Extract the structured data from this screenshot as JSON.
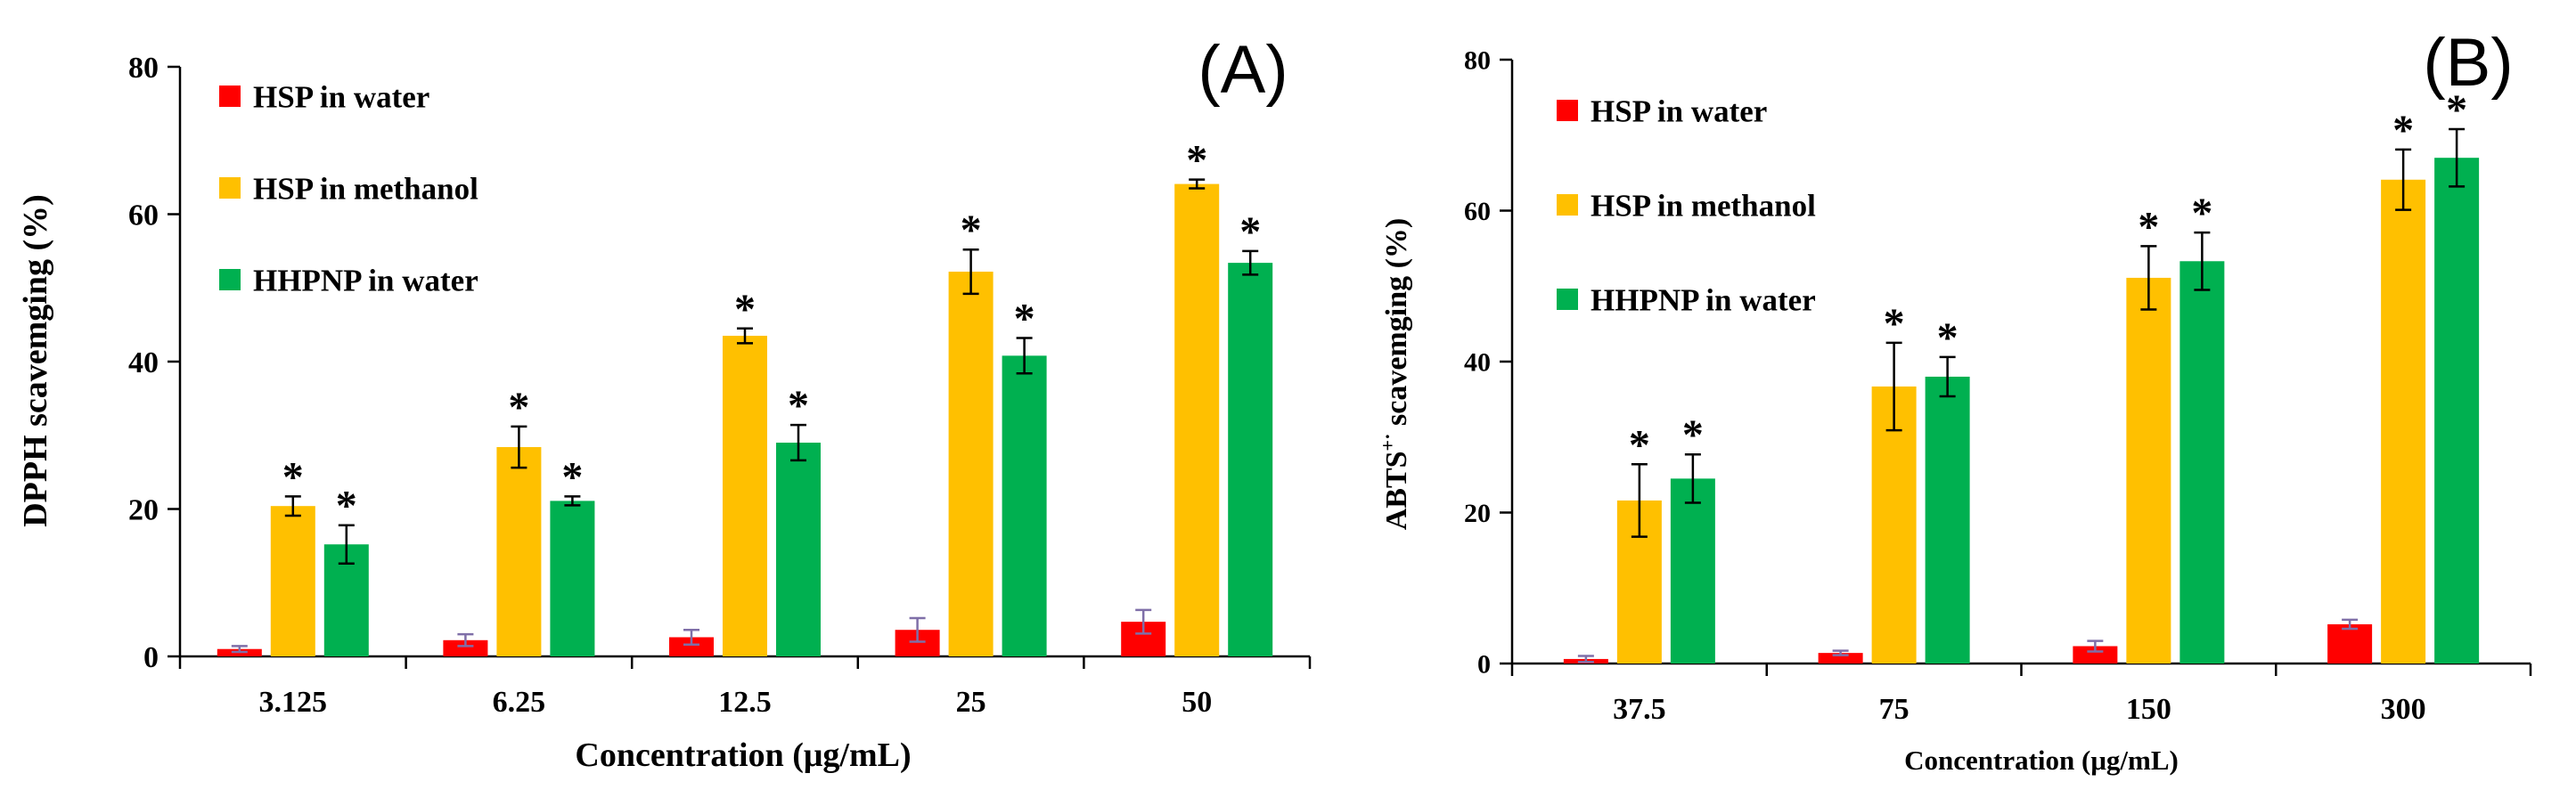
{
  "chart_data": [
    {
      "type": "bar",
      "panel_label": "(A)",
      "title": "",
      "xlabel": "Concentration (μg/mL)",
      "ylabel": "DPPH scavemging (%)",
      "ylim": [
        0,
        80
      ],
      "yticks": [
        0,
        20,
        40,
        60,
        80
      ],
      "categories": [
        "3.125",
        "6.25",
        "12.5",
        "25",
        "50"
      ],
      "legend_position": "top-left",
      "grid": false,
      "significance_marker": "*",
      "series": [
        {
          "name": "HSP in water",
          "color": "#ff0000",
          "values": [
            1.0,
            2.2,
            2.6,
            3.6,
            4.7
          ],
          "errors": [
            0.4,
            0.8,
            1.0,
            1.6,
            1.6
          ],
          "significant": [
            false,
            false,
            false,
            false,
            false
          ]
        },
        {
          "name": "HSP in methanol",
          "color": "#ffc000",
          "values": [
            20.4,
            28.4,
            43.5,
            52.2,
            64.1
          ],
          "errors": [
            1.3,
            2.8,
            1.0,
            3.0,
            0.6
          ],
          "significant": [
            true,
            true,
            true,
            true,
            true
          ]
        },
        {
          "name": "HHPNP in water",
          "color": "#00b050",
          "values": [
            15.2,
            21.1,
            29.0,
            40.8,
            53.4
          ],
          "errors": [
            2.6,
            0.6,
            2.4,
            2.4,
            1.6
          ],
          "significant": [
            true,
            true,
            true,
            true,
            true
          ]
        }
      ]
    },
    {
      "type": "bar",
      "panel_label": "(B)",
      "title": "",
      "xlabel": "Concentration (μg/mL)",
      "ylabel_main": "ABTS",
      "ylabel_sup": "+·",
      "ylabel_tail": " scavemging (%)",
      "ylim": [
        0,
        80
      ],
      "yticks": [
        0,
        20,
        40,
        60,
        80
      ],
      "categories": [
        "37.5",
        "75",
        "150",
        "300"
      ],
      "legend_position": "top-left",
      "grid": false,
      "significance_marker": "*",
      "series": [
        {
          "name": "HSP in water",
          "color": "#ff0000",
          "values": [
            0.6,
            1.4,
            2.3,
            5.2
          ],
          "errors": [
            0.4,
            0.3,
            0.7,
            0.6
          ],
          "significant": [
            false,
            false,
            false,
            false
          ]
        },
        {
          "name": "HSP in methanol",
          "color": "#ffc000",
          "values": [
            21.6,
            36.7,
            51.1,
            64.1
          ],
          "errors": [
            4.8,
            5.8,
            4.2,
            4.0
          ],
          "significant": [
            true,
            true,
            true,
            true
          ]
        },
        {
          "name": "HHPNP in water",
          "color": "#00b050",
          "values": [
            24.5,
            38.0,
            53.3,
            67.0
          ],
          "errors": [
            3.2,
            2.6,
            3.8,
            3.8
          ],
          "significant": [
            true,
            true,
            true,
            true
          ]
        }
      ]
    }
  ]
}
